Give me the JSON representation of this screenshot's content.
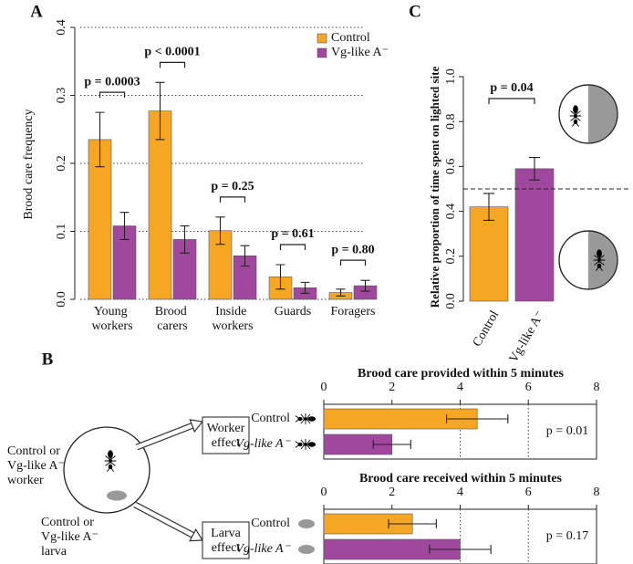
{
  "chart_data": [
    {
      "type": "bar",
      "panel": "A",
      "ylabel": "Brood care frequency",
      "categories": [
        "Young workers",
        "Brood carers",
        "Inside workers",
        "Guards",
        "Foragers"
      ],
      "series": [
        {
          "name": "Control",
          "color": "#F5A623",
          "values": [
            0.235,
            0.277,
            0.101,
            0.033,
            0.01
          ],
          "errors": [
            0.04,
            0.042,
            0.02,
            0.018,
            0.005
          ]
        },
        {
          "name": "Vg-like A⁻",
          "color": "#A0489D",
          "values": [
            0.108,
            0.088,
            0.064,
            0.017,
            0.02
          ],
          "errors": [
            0.02,
            0.02,
            0.015,
            0.008,
            0.008
          ]
        }
      ],
      "annotations": [
        "p = 0.0003",
        "p < 0.0001",
        "p = 0.25",
        "p = 0.61",
        "p = 0.80"
      ],
      "ylim": [
        0,
        0.4
      ],
      "yticks": [
        {
          "value": 0,
          "label": "0.0"
        },
        0.1,
        0.2,
        0.3,
        0.4
      ],
      "grid": true,
      "legend": "upper right"
    },
    {
      "type": "bar",
      "panel": "C",
      "ylabel": "Relative proportion of time spent on lighted site",
      "categories": [
        "Control",
        "Vg-like A⁻"
      ],
      "values": [
        0.42,
        0.59
      ],
      "errors": [
        0.06,
        0.05
      ],
      "colors": [
        "#F5A623",
        "#A0489D"
      ],
      "annotations": [
        "p = 0.04"
      ],
      "ylim": [
        0,
        1.0
      ],
      "yticks": [
        {
          "value": 0,
          "label": "0.0"
        },
        0.2,
        0.4,
        0.6,
        0.8,
        {
          "value": 1.0,
          "label": "1.0"
        }
      ],
      "hline": 0.5
    },
    {
      "type": "barh",
      "title": "Brood care provided within 5 minutes",
      "categories": [
        "Control",
        "Vg-like A⁻"
      ],
      "values": [
        4.5,
        2.0
      ],
      "errors": [
        0.9,
        0.55
      ],
      "colors": [
        "#F5A623",
        "#A0489D"
      ],
      "annotation": "p = 0.01",
      "xlim": [
        0,
        8
      ],
      "xticks": [
        0,
        2,
        4,
        6,
        8
      ],
      "vlines": [
        4,
        6
      ]
    },
    {
      "type": "barh",
      "title": "Brood care received within 5 minutes",
      "categories": [
        "Control",
        "Vg-like A⁻"
      ],
      "values": [
        2.6,
        4.0
      ],
      "errors": [
        0.7,
        0.9
      ],
      "colors": [
        "#F5A623",
        "#A0489D"
      ],
      "annotation": "p = 0.17",
      "xlim": [
        0,
        8
      ],
      "xticks": [
        0,
        2,
        4,
        6,
        8
      ],
      "vlines": [
        4,
        6
      ]
    }
  ],
  "diagram": {
    "panel": "B",
    "worker_label": [
      "Control or",
      "Vg-like A⁻",
      "worker"
    ],
    "larva_label": [
      "Control or",
      "Vg-like A⁻",
      "larva"
    ],
    "boxes": [
      [
        "Worker",
        "effect"
      ],
      [
        "Larva",
        "effect"
      ]
    ]
  }
}
